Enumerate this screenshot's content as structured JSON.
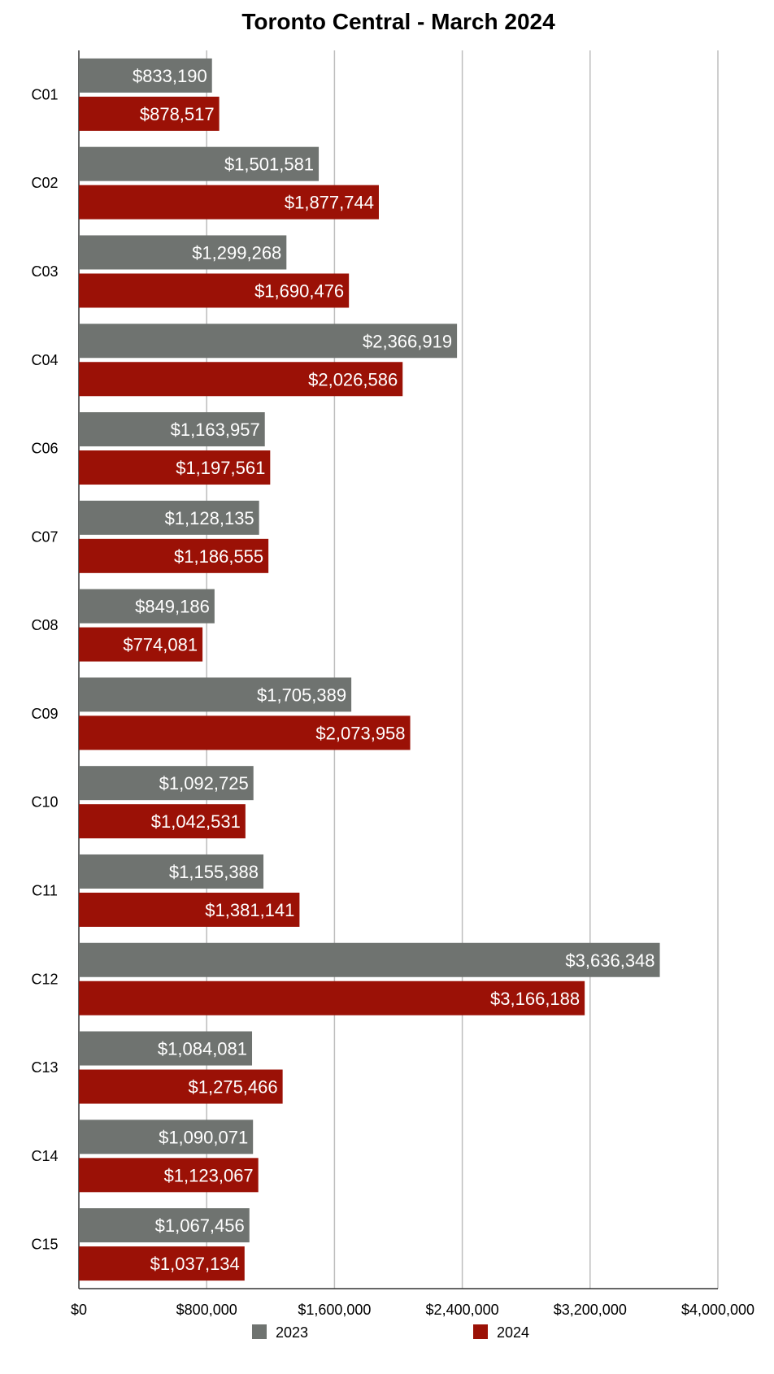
{
  "chart_data": {
    "type": "bar",
    "orientation": "horizontal",
    "title": "Toronto Central - March 2024",
    "xlabel": "",
    "ylabel": "",
    "xlim": [
      0,
      4000000
    ],
    "grid": true,
    "legend_position": "bottom",
    "categories": [
      "C01",
      "C02",
      "C03",
      "C04",
      "C06",
      "C07",
      "C08",
      "C09",
      "C10",
      "C11",
      "C12",
      "C13",
      "C14",
      "C15"
    ],
    "tick_labels": [
      "$0",
      "$800,000",
      "$1,600,000",
      "$2,400,000",
      "$3,200,000",
      "$4,000,000"
    ],
    "tick_values": [
      0,
      800000,
      1600000,
      2400000,
      3200000,
      4000000
    ],
    "series": [
      {
        "name": "2023",
        "color": "#6f7370",
        "values": [
          833190,
          1501581,
          1299268,
          2366919,
          1163957,
          1128135,
          849186,
          1705389,
          1092725,
          1155388,
          3636348,
          1084081,
          1090071,
          1067456
        ],
        "labels": [
          "$833,190",
          "$1,501,581",
          "$1,299,268",
          "$2,366,919",
          "$1,163,957",
          "$1,128,135",
          "$849,186",
          "$1,705,389",
          "$1,092,725",
          "$1,155,388",
          "$3,636,348",
          "$1,084,081",
          "$1,090,071",
          "$1,067,456"
        ]
      },
      {
        "name": "2024",
        "color": "#9b1106",
        "values": [
          878517,
          1877744,
          1690476,
          2026586,
          1197561,
          1186555,
          774081,
          2073958,
          1042531,
          1381141,
          3166188,
          1275466,
          1123067,
          1037134
        ],
        "labels": [
          "$878,517",
          "$1,877,744",
          "$1,690,476",
          "$2,026,586",
          "$1,197,561",
          "$1,186,555",
          "$774,081",
          "$2,073,958",
          "$1,042,531",
          "$1,381,141",
          "$3,166,188",
          "$1,275,466",
          "$1,123,067",
          "$1,037,134"
        ]
      }
    ]
  }
}
